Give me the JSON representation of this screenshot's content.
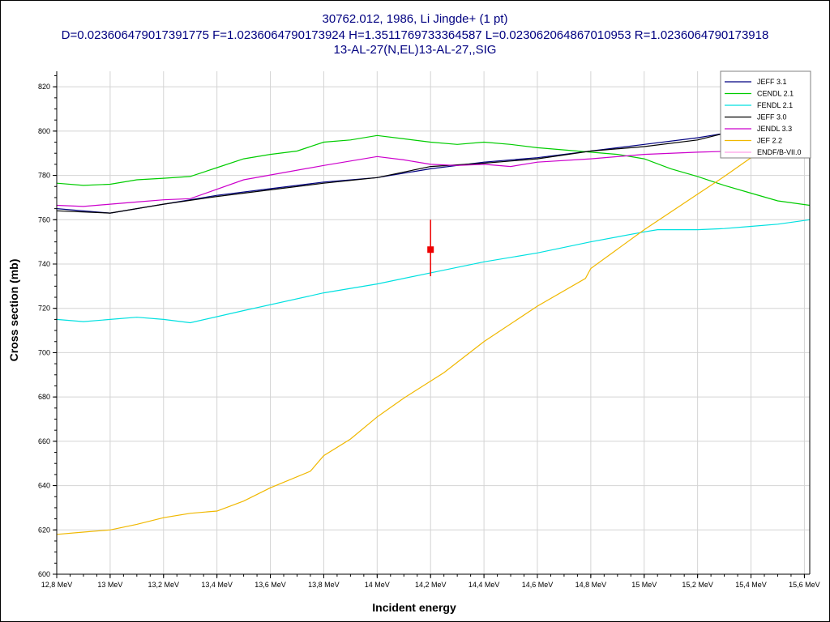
{
  "header": {
    "line1": "30762.012, 1986, Li Jingde+ (1 pt)",
    "line2": "D=0.023606479017391775 F=1.0236064790173924 H=1.3511769733364587 L=0.023062064867010953 R=1.0236064790173918",
    "line3": "13-AL-27(N,EL)13-AL-27,,SIG"
  },
  "chart_data": {
    "type": "line",
    "xlabel": "Incident energy",
    "ylabel": "Cross section (mb)",
    "xlim": [
      12.8,
      15.62
    ],
    "ylim": [
      600,
      827
    ],
    "grid": true,
    "legend_position": "top-right",
    "x_ticks": [
      {
        "value": 12.8,
        "label": "12,8 MeV"
      },
      {
        "value": 13.0,
        "label": "13 MeV"
      },
      {
        "value": 13.2,
        "label": "13,2 MeV"
      },
      {
        "value": 13.4,
        "label": "13,4 MeV"
      },
      {
        "value": 13.6,
        "label": "13,6 MeV"
      },
      {
        "value": 13.8,
        "label": "13,8 MeV"
      },
      {
        "value": 14.0,
        "label": "14 MeV"
      },
      {
        "value": 14.2,
        "label": "14,2 MeV"
      },
      {
        "value": 14.4,
        "label": "14,4 MeV"
      },
      {
        "value": 14.6,
        "label": "14,6 MeV"
      },
      {
        "value": 14.8,
        "label": "14,8 MeV"
      },
      {
        "value": 15.0,
        "label": "15 MeV"
      },
      {
        "value": 15.2,
        "label": "15,2 MeV"
      },
      {
        "value": 15.4,
        "label": "15,4 MeV"
      },
      {
        "value": 15.6,
        "label": "15,6 MeV"
      }
    ],
    "y_ticks": [
      {
        "value": 600,
        "label": "600"
      },
      {
        "value": 620,
        "label": "620"
      },
      {
        "value": 640,
        "label": "640"
      },
      {
        "value": 660,
        "label": "660"
      },
      {
        "value": 680,
        "label": "680"
      },
      {
        "value": 700,
        "label": "700"
      },
      {
        "value": 720,
        "label": "720"
      },
      {
        "value": 740,
        "label": "740"
      },
      {
        "value": 760,
        "label": "760"
      },
      {
        "value": 780,
        "label": "780"
      },
      {
        "value": 800,
        "label": "800"
      },
      {
        "value": 820,
        "label": "820"
      }
    ],
    "series": [
      {
        "name": "JEFF 3.1",
        "color": "#000080",
        "x": [
          12.8,
          13.0,
          13.2,
          13.4,
          13.6,
          13.8,
          14.0,
          14.2,
          14.4,
          14.6,
          14.8,
          15.0,
          15.2,
          15.3
        ],
        "y": [
          765,
          763,
          767,
          771,
          774,
          777,
          779,
          783,
          786,
          788,
          791,
          794,
          797,
          799
        ]
      },
      {
        "name": "CENDL 2.1",
        "color": "#00cc00",
        "x": [
          12.8,
          12.9,
          13.0,
          13.1,
          13.2,
          13.3,
          13.4,
          13.5,
          13.6,
          13.7,
          13.8,
          13.9,
          14.0,
          14.1,
          14.2,
          14.3,
          14.4,
          14.5,
          14.6,
          14.7,
          14.8,
          14.9,
          15.0,
          15.1,
          15.2,
          15.3,
          15.4,
          15.5,
          15.62
        ],
        "y": [
          776.5,
          775.5,
          776,
          778,
          778.7,
          779.5,
          783.5,
          787.5,
          789.5,
          791,
          795,
          796,
          798,
          796.5,
          795,
          794,
          795,
          794,
          792.5,
          791.5,
          790.5,
          789.5,
          787.5,
          783,
          779.5,
          775.5,
          772,
          768.5,
          766.5
        ]
      },
      {
        "name": "FENDL 2.1",
        "color": "#00e0e0",
        "x": [
          12.8,
          12.9,
          13.0,
          13.1,
          13.2,
          13.3,
          13.5,
          13.8,
          14.0,
          14.2,
          14.4,
          14.6,
          14.8,
          15.0,
          15.05,
          15.2,
          15.3,
          15.4,
          15.5,
          15.62
        ],
        "y": [
          715,
          714,
          715,
          716,
          715,
          713.5,
          719,
          727,
          731,
          736,
          741,
          745,
          750,
          754.5,
          755.5,
          755.5,
          756,
          757,
          758,
          760
        ]
      },
      {
        "name": "JEFF 3.0",
        "color": "#000000",
        "x": [
          12.8,
          13.0,
          13.2,
          13.4,
          13.6,
          13.8,
          14.0,
          14.2,
          14.4,
          14.6,
          14.8,
          15.0,
          15.2,
          15.3
        ],
        "y": [
          764,
          763,
          767,
          770.5,
          773.5,
          776.5,
          779,
          784,
          785.5,
          787.5,
          791,
          793,
          796,
          799
        ]
      },
      {
        "name": "JENDL 3.3",
        "color": "#cc00cc",
        "x": [
          12.8,
          12.9,
          13.0,
          13.1,
          13.2,
          13.3,
          13.5,
          13.8,
          14.0,
          14.1,
          14.2,
          14.3,
          14.4,
          14.5,
          14.6,
          14.8,
          15.0,
          15.2,
          15.35
        ],
        "y": [
          766.5,
          766,
          767,
          768,
          769,
          769.5,
          778,
          784.5,
          788.5,
          787,
          785,
          784.5,
          785,
          784,
          786,
          787.5,
          789.5,
          790.5,
          791
        ]
      },
      {
        "name": "JEF 2.2",
        "color": "#f0b800",
        "x": [
          12.8,
          12.9,
          13.0,
          13.1,
          13.2,
          13.3,
          13.4,
          13.5,
          13.6,
          13.75,
          13.8,
          13.9,
          14.0,
          14.1,
          14.25,
          14.4,
          14.6,
          14.78,
          14.8,
          15.0,
          15.2,
          15.3,
          15.4
        ],
        "y": [
          618,
          619,
          620,
          622.5,
          625.5,
          627.5,
          628.5,
          633,
          639,
          646.5,
          653.5,
          661,
          671,
          679.5,
          691,
          705,
          721,
          733.5,
          738,
          755.5,
          771.5,
          779.5,
          788
        ]
      },
      {
        "name": "ENDF/B-VII.0",
        "color": "#ff9fe8",
        "x": [],
        "y": []
      }
    ],
    "points": [
      {
        "x": 14.2,
        "y": 746.5,
        "err_low": 734.5,
        "err_high": 760,
        "color": "#ee0000"
      }
    ]
  }
}
